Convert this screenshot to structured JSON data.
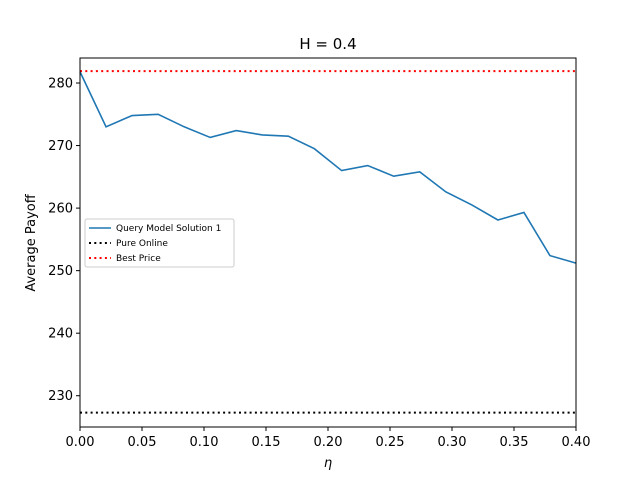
{
  "chart_data": {
    "type": "line",
    "title": "H = 0.4",
    "xlabel": "η",
    "ylabel": "Average Payoff",
    "xlim": [
      0.0,
      0.4
    ],
    "ylim": [
      225,
      284
    ],
    "xticks": [
      0.0,
      0.05,
      0.1,
      0.15,
      0.2,
      0.25,
      0.3,
      0.35,
      0.4
    ],
    "xtick_labels": [
      "0.00",
      "0.05",
      "0.10",
      "0.15",
      "0.20",
      "0.25",
      "0.30",
      "0.35",
      "0.40"
    ],
    "yticks": [
      230,
      240,
      250,
      260,
      270,
      280
    ],
    "ytick_labels": [
      "230",
      "240",
      "250",
      "260",
      "270",
      "280"
    ],
    "grid": false,
    "legend_position": "center-left",
    "series": [
      {
        "name": "Query Model Solution 1",
        "style": "solid",
        "color": "#1f77b4",
        "x": [
          0.0,
          0.021,
          0.042,
          0.063,
          0.084,
          0.105,
          0.126,
          0.147,
          0.168,
          0.189,
          0.211,
          0.232,
          0.253,
          0.274,
          0.295,
          0.316,
          0.337,
          0.358,
          0.379,
          0.4
        ],
        "values": [
          281.8,
          273.0,
          274.8,
          275.0,
          273.0,
          271.3,
          272.4,
          271.7,
          271.5,
          269.5,
          266.0,
          266.8,
          265.1,
          265.8,
          262.6,
          260.5,
          258.1,
          259.3,
          252.4,
          251.2
        ]
      },
      {
        "name": "Pure Online",
        "style": "dotted",
        "color": "#000000",
        "x": [
          0.0,
          0.4
        ],
        "values": [
          227.3,
          227.3
        ]
      },
      {
        "name": "Best Price",
        "style": "dotted",
        "color": "#ff0000",
        "x": [
          0.0,
          0.4
        ],
        "values": [
          281.9,
          281.9
        ]
      }
    ]
  }
}
